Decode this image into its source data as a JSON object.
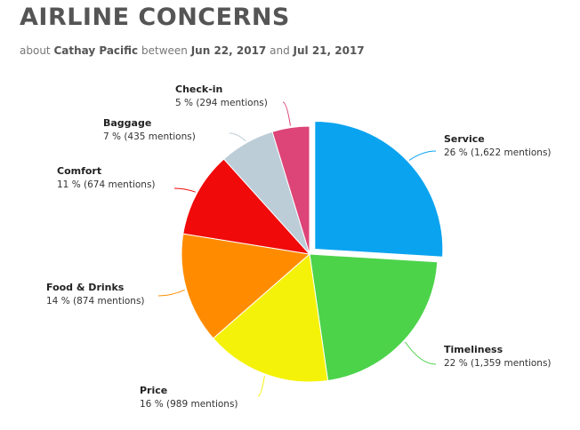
{
  "header": {
    "title": "AIRLINE CONCERNS",
    "subtitle_prefix": "about",
    "airline": "Cathay Pacific",
    "between_word": "between",
    "date_start": "Jun 22, 2017",
    "and_word": "and",
    "date_end": "Jul 21, 2017"
  },
  "chart_data": {
    "type": "pie",
    "title": "AIRLINE CONCERNS",
    "categories": [
      "Service",
      "Timeliness",
      "Price",
      "Food & Drinks",
      "Comfort",
      "Baggage",
      "Check-in"
    ],
    "values": [
      1622,
      1359,
      989,
      874,
      674,
      435,
      294
    ],
    "percent_labels": [
      "26 %",
      "22 %",
      "16 %",
      "14 %",
      "11 %",
      "7 %",
      "5 %"
    ],
    "value_labels": [
      "(1,622 mentions)",
      "(1,359 mentions)",
      "(989 mentions)",
      "(874 mentions)",
      "(674 mentions)",
      "(435 mentions)",
      "(294 mentions)"
    ],
    "colors": [
      "#0aa3f0",
      "#4cd34a",
      "#f5f20a",
      "#ff8c00",
      "#f00a0a",
      "#bccdd8",
      "#dd4477"
    ],
    "exploded": "Service",
    "legend": "none (labels on leader lines)"
  }
}
